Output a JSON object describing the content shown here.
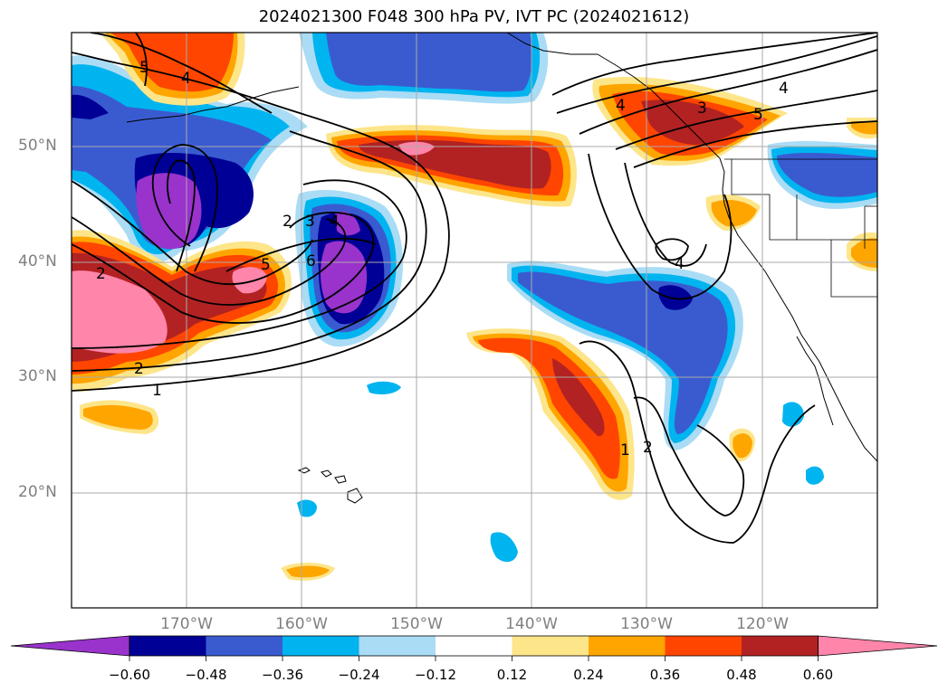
{
  "title": "2024021300 F048 300 hPa PV, IVT PC (2024021612)",
  "lat_labels": [
    "50°N",
    "40°N",
    "30°N",
    "20°N"
  ],
  "lon_labels": [
    "170°W",
    "160°W",
    "150°W",
    "140°W",
    "130°W",
    "120°W"
  ],
  "colorbar": {
    "ticks": [
      "−0.60",
      "−0.48",
      "−0.36",
      "−0.24",
      "−0.12",
      "0.12",
      "0.24",
      "0.36",
      "0.48",
      "0.60"
    ],
    "colors": [
      "#9933cc",
      "#000096",
      "#3a5bd0",
      "#00b4f0",
      "#aadcf5",
      "#ffffff",
      "#fde58a",
      "#ffa500",
      "#ff4500",
      "#b22222",
      "#ff85aa"
    ]
  },
  "contour_labels": [
    "5",
    "4",
    "2",
    "3",
    "4",
    "5",
    "6",
    "2",
    "2",
    "1",
    "4",
    "3",
    "5",
    "4",
    "1",
    "2"
  ],
  "shading_colors": {
    "purple": "#9933cc",
    "navy": "#000096",
    "blue": "#3a5bd0",
    "cyan": "#00b4f0",
    "lightblue": "#aadcf5",
    "yellow": "#fde58a",
    "orange": "#ffa500",
    "redorange": "#ff4500",
    "firebrick": "#b22222",
    "pink": "#ff85aa"
  }
}
